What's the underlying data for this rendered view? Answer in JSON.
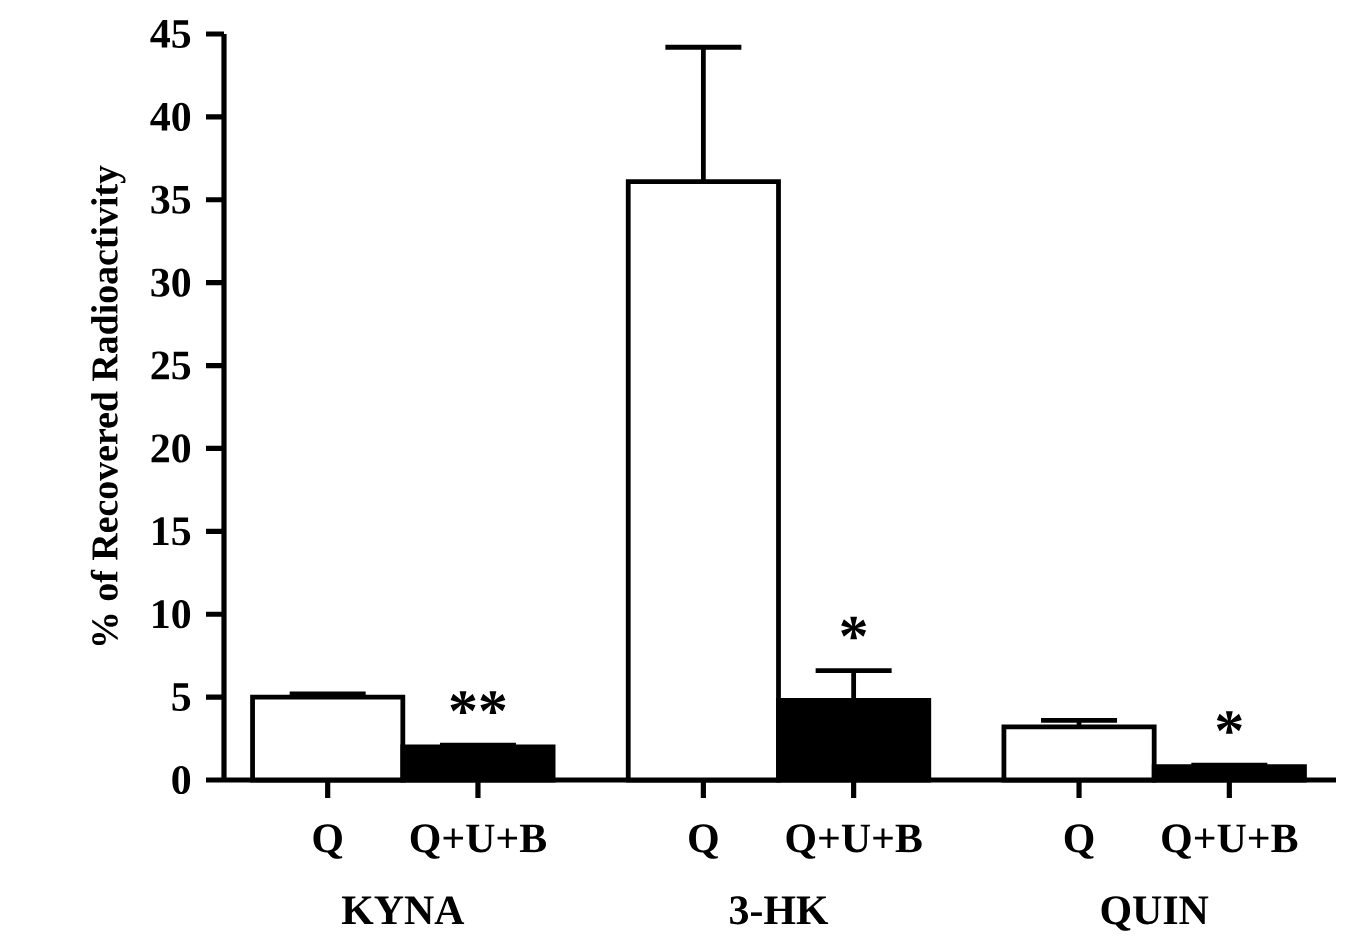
{
  "chart_data": {
    "type": "bar",
    "categories": [
      "Q",
      "Q+U+B",
      "Q",
      "Q+U+B",
      "Q",
      "Q+U+B"
    ],
    "values": [
      5.0,
      2.0,
      36.1,
      4.8,
      3.2,
      0.8
    ],
    "errors": [
      [
        5.0,
        5.2
      ],
      [
        2.0,
        2.1
      ],
      [
        36.1,
        44.2
      ],
      [
        4.8,
        6.6
      ],
      [
        3.2,
        3.6
      ],
      [
        0.8,
        0.9
      ]
    ],
    "colors": [
      "#ffffff",
      "#000000",
      "#ffffff",
      "#000000",
      "#ffffff",
      "#000000"
    ],
    "ylabel": "% of Recovered Radioactivity",
    "ylim": [
      0,
      45
    ],
    "yticks": [
      0,
      5,
      10,
      15,
      20,
      25,
      30,
      35,
      40,
      45
    ],
    "annotations": [
      "KYNA",
      "3-HK",
      "QUIN",
      "**",
      "*",
      "*"
    ]
  }
}
